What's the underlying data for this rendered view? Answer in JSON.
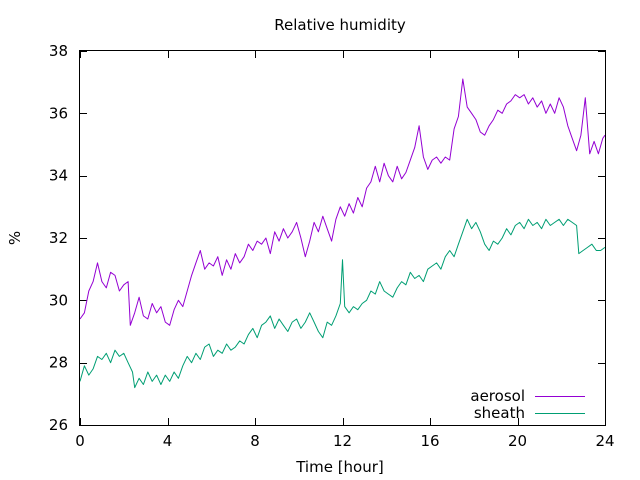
{
  "chart_data": {
    "type": "line",
    "title": "Relative humidity",
    "xlabel": "Time [hour]",
    "ylabel": "%",
    "xlim": [
      0,
      24
    ],
    "ylim": [
      26,
      38
    ],
    "xticks": [
      0,
      4,
      8,
      12,
      16,
      20,
      24
    ],
    "yticks": [
      26,
      28,
      30,
      32,
      34,
      36,
      38
    ],
    "grid": false,
    "legend_position": "bottom-right",
    "series": [
      {
        "name": "aerosol",
        "color": "#9400d3",
        "points": [
          [
            0.0,
            29.4
          ],
          [
            0.2,
            29.6
          ],
          [
            0.4,
            30.3
          ],
          [
            0.6,
            30.6
          ],
          [
            0.8,
            31.2
          ],
          [
            1.0,
            30.6
          ],
          [
            1.2,
            30.4
          ],
          [
            1.4,
            30.9
          ],
          [
            1.6,
            30.8
          ],
          [
            1.8,
            30.3
          ],
          [
            2.0,
            30.5
          ],
          [
            2.2,
            30.6
          ],
          [
            2.3,
            29.2
          ],
          [
            2.5,
            29.6
          ],
          [
            2.7,
            30.1
          ],
          [
            2.9,
            29.5
          ],
          [
            3.1,
            29.4
          ],
          [
            3.3,
            29.9
          ],
          [
            3.5,
            29.6
          ],
          [
            3.7,
            29.8
          ],
          [
            3.9,
            29.3
          ],
          [
            4.1,
            29.2
          ],
          [
            4.3,
            29.7
          ],
          [
            4.5,
            30.0
          ],
          [
            4.7,
            29.8
          ],
          [
            4.9,
            30.3
          ],
          [
            5.1,
            30.8
          ],
          [
            5.3,
            31.2
          ],
          [
            5.5,
            31.6
          ],
          [
            5.7,
            31.0
          ],
          [
            5.9,
            31.2
          ],
          [
            6.1,
            31.1
          ],
          [
            6.3,
            31.4
          ],
          [
            6.5,
            30.8
          ],
          [
            6.7,
            31.3
          ],
          [
            6.9,
            31.0
          ],
          [
            7.1,
            31.5
          ],
          [
            7.3,
            31.2
          ],
          [
            7.5,
            31.4
          ],
          [
            7.7,
            31.8
          ],
          [
            7.9,
            31.6
          ],
          [
            8.1,
            31.9
          ],
          [
            8.3,
            31.8
          ],
          [
            8.5,
            32.0
          ],
          [
            8.7,
            31.5
          ],
          [
            8.9,
            32.2
          ],
          [
            9.1,
            31.9
          ],
          [
            9.3,
            32.3
          ],
          [
            9.5,
            32.0
          ],
          [
            9.7,
            32.2
          ],
          [
            9.9,
            32.5
          ],
          [
            10.1,
            32.0
          ],
          [
            10.3,
            31.4
          ],
          [
            10.5,
            31.9
          ],
          [
            10.7,
            32.5
          ],
          [
            10.9,
            32.2
          ],
          [
            11.1,
            32.7
          ],
          [
            11.3,
            32.3
          ],
          [
            11.5,
            31.9
          ],
          [
            11.7,
            32.6
          ],
          [
            11.9,
            33.0
          ],
          [
            12.1,
            32.7
          ],
          [
            12.3,
            33.1
          ],
          [
            12.5,
            32.8
          ],
          [
            12.7,
            33.3
          ],
          [
            12.9,
            33.0
          ],
          [
            13.1,
            33.6
          ],
          [
            13.3,
            33.8
          ],
          [
            13.5,
            34.3
          ],
          [
            13.7,
            33.8
          ],
          [
            13.9,
            34.4
          ],
          [
            14.1,
            34.0
          ],
          [
            14.3,
            33.8
          ],
          [
            14.5,
            34.3
          ],
          [
            14.7,
            33.9
          ],
          [
            14.9,
            34.1
          ],
          [
            15.1,
            34.5
          ],
          [
            15.3,
            34.9
          ],
          [
            15.5,
            35.6
          ],
          [
            15.7,
            34.6
          ],
          [
            15.9,
            34.2
          ],
          [
            16.1,
            34.5
          ],
          [
            16.3,
            34.6
          ],
          [
            16.5,
            34.4
          ],
          [
            16.7,
            34.6
          ],
          [
            16.9,
            34.5
          ],
          [
            17.1,
            35.5
          ],
          [
            17.3,
            35.9
          ],
          [
            17.5,
            37.1
          ],
          [
            17.7,
            36.2
          ],
          [
            17.9,
            36.0
          ],
          [
            18.1,
            35.8
          ],
          [
            18.3,
            35.4
          ],
          [
            18.5,
            35.3
          ],
          [
            18.7,
            35.6
          ],
          [
            18.9,
            35.8
          ],
          [
            19.1,
            36.1
          ],
          [
            19.3,
            36.0
          ],
          [
            19.5,
            36.3
          ],
          [
            19.7,
            36.4
          ],
          [
            19.9,
            36.6
          ],
          [
            20.1,
            36.5
          ],
          [
            20.3,
            36.6
          ],
          [
            20.5,
            36.3
          ],
          [
            20.7,
            36.5
          ],
          [
            20.9,
            36.2
          ],
          [
            21.1,
            36.4
          ],
          [
            21.3,
            36.0
          ],
          [
            21.5,
            36.3
          ],
          [
            21.7,
            36.0
          ],
          [
            21.9,
            36.5
          ],
          [
            22.1,
            36.2
          ],
          [
            22.3,
            35.6
          ],
          [
            22.5,
            35.2
          ],
          [
            22.7,
            34.8
          ],
          [
            22.9,
            35.3
          ],
          [
            23.1,
            36.5
          ],
          [
            23.3,
            34.7
          ],
          [
            23.5,
            35.1
          ],
          [
            23.7,
            34.7
          ],
          [
            23.9,
            35.2
          ],
          [
            24.0,
            35.3
          ]
        ]
      },
      {
        "name": "sheath",
        "color": "#009e73",
        "points": [
          [
            0.0,
            27.4
          ],
          [
            0.2,
            27.9
          ],
          [
            0.4,
            27.6
          ],
          [
            0.6,
            27.8
          ],
          [
            0.8,
            28.2
          ],
          [
            1.0,
            28.1
          ],
          [
            1.2,
            28.3
          ],
          [
            1.4,
            28.0
          ],
          [
            1.6,
            28.4
          ],
          [
            1.8,
            28.2
          ],
          [
            2.0,
            28.3
          ],
          [
            2.2,
            28.0
          ],
          [
            2.4,
            27.7
          ],
          [
            2.5,
            27.2
          ],
          [
            2.7,
            27.5
          ],
          [
            2.9,
            27.3
          ],
          [
            3.1,
            27.7
          ],
          [
            3.3,
            27.4
          ],
          [
            3.5,
            27.6
          ],
          [
            3.7,
            27.3
          ],
          [
            3.9,
            27.6
          ],
          [
            4.1,
            27.4
          ],
          [
            4.3,
            27.7
          ],
          [
            4.5,
            27.5
          ],
          [
            4.7,
            27.9
          ],
          [
            4.9,
            28.2
          ],
          [
            5.1,
            28.0
          ],
          [
            5.3,
            28.3
          ],
          [
            5.5,
            28.1
          ],
          [
            5.7,
            28.5
          ],
          [
            5.9,
            28.6
          ],
          [
            6.1,
            28.2
          ],
          [
            6.3,
            28.4
          ],
          [
            6.5,
            28.3
          ],
          [
            6.7,
            28.6
          ],
          [
            6.9,
            28.4
          ],
          [
            7.1,
            28.5
          ],
          [
            7.3,
            28.7
          ],
          [
            7.5,
            28.6
          ],
          [
            7.7,
            28.9
          ],
          [
            7.9,
            29.1
          ],
          [
            8.1,
            28.8
          ],
          [
            8.3,
            29.2
          ],
          [
            8.5,
            29.3
          ],
          [
            8.7,
            29.5
          ],
          [
            8.9,
            29.1
          ],
          [
            9.1,
            29.4
          ],
          [
            9.3,
            29.2
          ],
          [
            9.5,
            29.0
          ],
          [
            9.7,
            29.3
          ],
          [
            9.9,
            29.4
          ],
          [
            10.1,
            29.1
          ],
          [
            10.3,
            29.3
          ],
          [
            10.5,
            29.6
          ],
          [
            10.7,
            29.3
          ],
          [
            10.9,
            29.0
          ],
          [
            11.1,
            28.8
          ],
          [
            11.3,
            29.3
          ],
          [
            11.5,
            29.2
          ],
          [
            11.7,
            29.5
          ],
          [
            11.9,
            29.9
          ],
          [
            12.0,
            31.3
          ],
          [
            12.1,
            29.8
          ],
          [
            12.3,
            29.6
          ],
          [
            12.5,
            29.8
          ],
          [
            12.7,
            29.7
          ],
          [
            12.9,
            29.9
          ],
          [
            13.1,
            30.0
          ],
          [
            13.3,
            30.3
          ],
          [
            13.5,
            30.2
          ],
          [
            13.7,
            30.6
          ],
          [
            13.9,
            30.3
          ],
          [
            14.1,
            30.2
          ],
          [
            14.3,
            30.1
          ],
          [
            14.5,
            30.4
          ],
          [
            14.7,
            30.6
          ],
          [
            14.9,
            30.5
          ],
          [
            15.1,
            30.9
          ],
          [
            15.3,
            30.7
          ],
          [
            15.5,
            30.8
          ],
          [
            15.7,
            30.6
          ],
          [
            15.9,
            31.0
          ],
          [
            16.1,
            31.1
          ],
          [
            16.3,
            31.2
          ],
          [
            16.5,
            31.0
          ],
          [
            16.7,
            31.4
          ],
          [
            16.9,
            31.6
          ],
          [
            17.1,
            31.4
          ],
          [
            17.3,
            31.8
          ],
          [
            17.5,
            32.2
          ],
          [
            17.7,
            32.6
          ],
          [
            17.9,
            32.3
          ],
          [
            18.1,
            32.5
          ],
          [
            18.3,
            32.2
          ],
          [
            18.5,
            31.8
          ],
          [
            18.7,
            31.6
          ],
          [
            18.9,
            31.9
          ],
          [
            19.1,
            31.8
          ],
          [
            19.3,
            32.0
          ],
          [
            19.5,
            32.3
          ],
          [
            19.7,
            32.1
          ],
          [
            19.9,
            32.4
          ],
          [
            20.1,
            32.5
          ],
          [
            20.3,
            32.3
          ],
          [
            20.5,
            32.6
          ],
          [
            20.7,
            32.4
          ],
          [
            20.9,
            32.5
          ],
          [
            21.1,
            32.3
          ],
          [
            21.3,
            32.6
          ],
          [
            21.5,
            32.4
          ],
          [
            21.7,
            32.5
          ],
          [
            21.9,
            32.6
          ],
          [
            22.1,
            32.4
          ],
          [
            22.3,
            32.6
          ],
          [
            22.5,
            32.5
          ],
          [
            22.7,
            32.4
          ],
          [
            22.8,
            31.5
          ],
          [
            23.0,
            31.6
          ],
          [
            23.2,
            31.7
          ],
          [
            23.4,
            31.8
          ],
          [
            23.6,
            31.6
          ],
          [
            23.8,
            31.6
          ],
          [
            24.0,
            31.7
          ]
        ]
      }
    ]
  }
}
